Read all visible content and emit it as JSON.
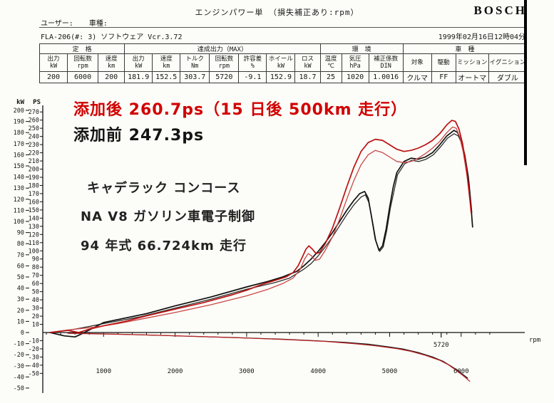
{
  "page": {
    "title": "エンジンパワー単 （損失補正あり:rpm）",
    "brand": "BOSCH",
    "user_label": "ユーザー:",
    "vehicle_label": "車種:",
    "device_line": "FLA-206(#: 3)  ソフトウェア Vcr.3.72",
    "datetime": "1999年02月16日12時04分"
  },
  "table": {
    "groups": [
      {
        "label": "定　格",
        "span": 3
      },
      {
        "label": "達成出力（MAX）",
        "span": 7
      },
      {
        "label": "環　境",
        "span": 3
      },
      {
        "label": "車　種",
        "span": 4
      }
    ],
    "columns": [
      {
        "h1": "出力",
        "h2": "kW",
        "value": "200"
      },
      {
        "h1": "回転数",
        "h2": "rpm",
        "value": "6000"
      },
      {
        "h1": "速度",
        "h2": "km",
        "value": "200"
      },
      {
        "h1": "出力",
        "h2": "kW",
        "value": "181.9"
      },
      {
        "h1": "速度",
        "h2": "km",
        "value": "152.5"
      },
      {
        "h1": "トルク",
        "h2": "Nm",
        "value": "303.7"
      },
      {
        "h1": "回転数",
        "h2": "rpm",
        "value": "5720"
      },
      {
        "h1": "許容差",
        "h2": "%",
        "value": "-9.1"
      },
      {
        "h1": "ホイール",
        "h2": "kW",
        "value": "152.9"
      },
      {
        "h1": "ロス",
        "h2": "kW",
        "value": "18.7"
      },
      {
        "h1": "温度",
        "h2": "℃",
        "value": "25"
      },
      {
        "h1": "気圧",
        "h2": "hPa",
        "value": "1020"
      },
      {
        "h1": "補正係数",
        "h2": "DIN",
        "value": "1.0016"
      },
      {
        "h1": "対象",
        "h2": "",
        "value": "クルマ"
      },
      {
        "h1": "駆動",
        "h2": "",
        "value": "FF"
      },
      {
        "h1": "ミッション",
        "h2": "",
        "value": "オートマ"
      },
      {
        "h1": "イグニション",
        "h2": "",
        "value": "ダブル"
      }
    ]
  },
  "annotations": {
    "after": "添加後 260.7ps（15 日後 500km 走行）",
    "after_color": "#d10000",
    "before": "添加前 247.3ps",
    "car1": "キャデラック コンコース",
    "car2": "NA V8 ガソリン車電子制御",
    "car3": "94 年式 66.724km 走行"
  },
  "chart_data": {
    "type": "line",
    "points_format": "[rpm, kW]",
    "x_axis": {
      "label": "rpm",
      "min": 0,
      "max": 6900,
      "ticks": [
        1000,
        2000,
        3000,
        4000,
        5000,
        6000
      ],
      "peak_marker": 5720
    },
    "y_axis_kw": {
      "label": "kW",
      "min": -50,
      "max": 200,
      "ticks": [
        200,
        190,
        180,
        170,
        160,
        150,
        140,
        130,
        120,
        110,
        100,
        90,
        80,
        70,
        60,
        50,
        40,
        30,
        20,
        10,
        0,
        -10,
        -20,
        -30,
        -40,
        -50
      ]
    },
    "y_axis_ps": {
      "label": "PS",
      "min": -60,
      "max": 275,
      "ticks": [
        270,
        260,
        250,
        240,
        230,
        220,
        210,
        200,
        190,
        180,
        170,
        160,
        150,
        140,
        130,
        120,
        110,
        100,
        90,
        80,
        70,
        60,
        50,
        40,
        30,
        20,
        10,
        -10,
        -20,
        -30,
        -40,
        -50
      ]
    },
    "series": [
      {
        "name": "before-additive-run2-black",
        "color": "#2e2e2e",
        "width": 1.3,
        "points": [
          [
            250,
            0
          ],
          [
            600,
            3
          ],
          [
            1000,
            8
          ],
          [
            1500,
            14
          ],
          [
            2000,
            22
          ],
          [
            2500,
            30
          ],
          [
            3000,
            39
          ],
          [
            3400,
            45
          ],
          [
            3600,
            49
          ],
          [
            3800,
            57
          ],
          [
            3900,
            62
          ],
          [
            4000,
            69
          ],
          [
            4100,
            77
          ],
          [
            4200,
            86
          ],
          [
            4300,
            96
          ],
          [
            4400,
            106
          ],
          [
            4500,
            115
          ],
          [
            4600,
            122
          ],
          [
            4660,
            124
          ],
          [
            4710,
            117
          ],
          [
            4760,
            100
          ],
          [
            4810,
            82
          ],
          [
            4860,
            73
          ],
          [
            4910,
            77
          ],
          [
            4960,
            92
          ],
          [
            5010,
            112
          ],
          [
            5110,
            142
          ],
          [
            5210,
            152
          ],
          [
            5310,
            155
          ],
          [
            5410,
            154
          ],
          [
            5510,
            156
          ],
          [
            5610,
            160
          ],
          [
            5710,
            167
          ],
          [
            5810,
            175
          ],
          [
            5900,
            179
          ],
          [
            5960,
            177
          ],
          [
            6010,
            170
          ],
          [
            6060,
            156
          ],
          [
            6110,
            135
          ],
          [
            6150,
            108
          ]
        ]
      },
      {
        "name": "before-additive-247.3ps-black",
        "color": "#101010",
        "width": 1.7,
        "points": [
          [
            250,
            0
          ],
          [
            450,
            -3
          ],
          [
            600,
            -4
          ],
          [
            700,
            -1
          ],
          [
            850,
            4
          ],
          [
            1000,
            9
          ],
          [
            1300,
            13
          ],
          [
            1600,
            17
          ],
          [
            2000,
            24
          ],
          [
            2500,
            32
          ],
          [
            3000,
            41
          ],
          [
            3300,
            46
          ],
          [
            3500,
            50
          ],
          [
            3700,
            55
          ],
          [
            3800,
            60
          ],
          [
            3900,
            66
          ],
          [
            4000,
            73
          ],
          [
            4100,
            81
          ],
          [
            4200,
            90
          ],
          [
            4300,
            100
          ],
          [
            4400,
            110
          ],
          [
            4500,
            119
          ],
          [
            4580,
            125
          ],
          [
            4650,
            127
          ],
          [
            4700,
            121
          ],
          [
            4750,
            103
          ],
          [
            4800,
            84
          ],
          [
            4850,
            74
          ],
          [
            4900,
            78
          ],
          [
            4950,
            93
          ],
          [
            5000,
            113
          ],
          [
            5050,
            131
          ],
          [
            5100,
            144
          ],
          [
            5200,
            154
          ],
          [
            5300,
            157
          ],
          [
            5400,
            156
          ],
          [
            5500,
            158
          ],
          [
            5600,
            162
          ],
          [
            5700,
            169
          ],
          [
            5800,
            177
          ],
          [
            5900,
            182
          ],
          [
            5950,
            180
          ],
          [
            6000,
            173
          ],
          [
            6050,
            160
          ],
          [
            6100,
            140
          ],
          [
            6140,
            112
          ],
          [
            6160,
            95
          ]
        ]
      },
      {
        "name": "after-additive-run2-red",
        "color": "#c84848",
        "width": 1.3,
        "points": [
          [
            250,
            0
          ],
          [
            600,
            3
          ],
          [
            900,
            5
          ],
          [
            1200,
            8
          ],
          [
            1600,
            13
          ],
          [
            2000,
            18
          ],
          [
            2500,
            25
          ],
          [
            3000,
            33
          ],
          [
            3300,
            39
          ],
          [
            3500,
            44
          ],
          [
            3650,
            49
          ],
          [
            3750,
            57
          ],
          [
            3810,
            66
          ],
          [
            3860,
            71
          ],
          [
            3910,
            69
          ],
          [
            3960,
            65
          ],
          [
            4020,
            66
          ],
          [
            4100,
            74
          ],
          [
            4200,
            86
          ],
          [
            4300,
            102
          ],
          [
            4400,
            120
          ],
          [
            4500,
            137
          ],
          [
            4600,
            151
          ],
          [
            4700,
            160
          ],
          [
            4800,
            164
          ],
          [
            4900,
            162
          ],
          [
            5000,
            158
          ],
          [
            5100,
            154
          ],
          [
            5200,
            153
          ],
          [
            5300,
            154
          ],
          [
            5400,
            157
          ],
          [
            5500,
            161
          ],
          [
            5600,
            166
          ],
          [
            5700,
            172
          ],
          [
            5800,
            180
          ],
          [
            5880,
            185
          ],
          [
            5930,
            184
          ],
          [
            5980,
            176
          ],
          [
            6030,
            162
          ],
          [
            6080,
            142
          ],
          [
            6120,
            120
          ]
        ]
      },
      {
        "name": "after-additive-260.7ps-red",
        "color": "#bb1111",
        "width": 1.7,
        "points": [
          [
            250,
            0
          ],
          [
            500,
            2
          ],
          [
            650,
            0
          ],
          [
            800,
            3
          ],
          [
            1000,
            6
          ],
          [
            1300,
            10
          ],
          [
            1600,
            15
          ],
          [
            2000,
            21
          ],
          [
            2400,
            27
          ],
          [
            2800,
            34
          ],
          [
            3000,
            38
          ],
          [
            3200,
            43
          ],
          [
            3400,
            47
          ],
          [
            3550,
            50
          ],
          [
            3650,
            54
          ],
          [
            3720,
            60
          ],
          [
            3780,
            68
          ],
          [
            3830,
            75
          ],
          [
            3870,
            78
          ],
          [
            3920,
            75
          ],
          [
            3970,
            71
          ],
          [
            4020,
            72
          ],
          [
            4100,
            80
          ],
          [
            4200,
            94
          ],
          [
            4300,
            112
          ],
          [
            4400,
            131
          ],
          [
            4500,
            149
          ],
          [
            4600,
            163
          ],
          [
            4700,
            171
          ],
          [
            4800,
            174
          ],
          [
            4900,
            173
          ],
          [
            5000,
            169
          ],
          [
            5100,
            165
          ],
          [
            5200,
            163
          ],
          [
            5300,
            164
          ],
          [
            5400,
            166
          ],
          [
            5500,
            169
          ],
          [
            5600,
            173
          ],
          [
            5700,
            179
          ],
          [
            5800,
            187
          ],
          [
            5870,
            191
          ],
          [
            5920,
            190
          ],
          [
            5970,
            183
          ],
          [
            6020,
            170
          ],
          [
            6070,
            150
          ],
          [
            6110,
            128
          ],
          [
            6140,
            108
          ]
        ]
      },
      {
        "name": "loss-curve-black",
        "color": "#141414",
        "width": 1.2,
        "points": [
          [
            500,
            -0.5
          ],
          [
            1200,
            -1.5
          ],
          [
            2000,
            -3
          ],
          [
            2800,
            -4.5
          ],
          [
            3500,
            -6
          ],
          [
            4000,
            -7.5
          ],
          [
            4400,
            -9
          ],
          [
            4700,
            -10.5
          ],
          [
            5000,
            -13
          ],
          [
            5200,
            -15
          ],
          [
            5400,
            -18
          ],
          [
            5600,
            -22
          ],
          [
            5750,
            -26
          ],
          [
            5850,
            -30
          ],
          [
            5950,
            -34
          ],
          [
            6030,
            -38
          ],
          [
            6090,
            -41
          ]
        ]
      },
      {
        "name": "loss-curve-red",
        "color": "#bb2222",
        "width": 1.2,
        "points": [
          [
            500,
            -0.7
          ],
          [
            1500,
            -2
          ],
          [
            2300,
            -3.5
          ],
          [
            3000,
            -5
          ],
          [
            3600,
            -6.5
          ],
          [
            4100,
            -8
          ],
          [
            4500,
            -10
          ],
          [
            4800,
            -12
          ],
          [
            5100,
            -14.5
          ],
          [
            5300,
            -17
          ],
          [
            5500,
            -20.5
          ],
          [
            5700,
            -25
          ],
          [
            5820,
            -29
          ],
          [
            5920,
            -33.5
          ],
          [
            6000,
            -37.5
          ],
          [
            6070,
            -41
          ],
          [
            6120,
            -44
          ]
        ]
      }
    ]
  }
}
